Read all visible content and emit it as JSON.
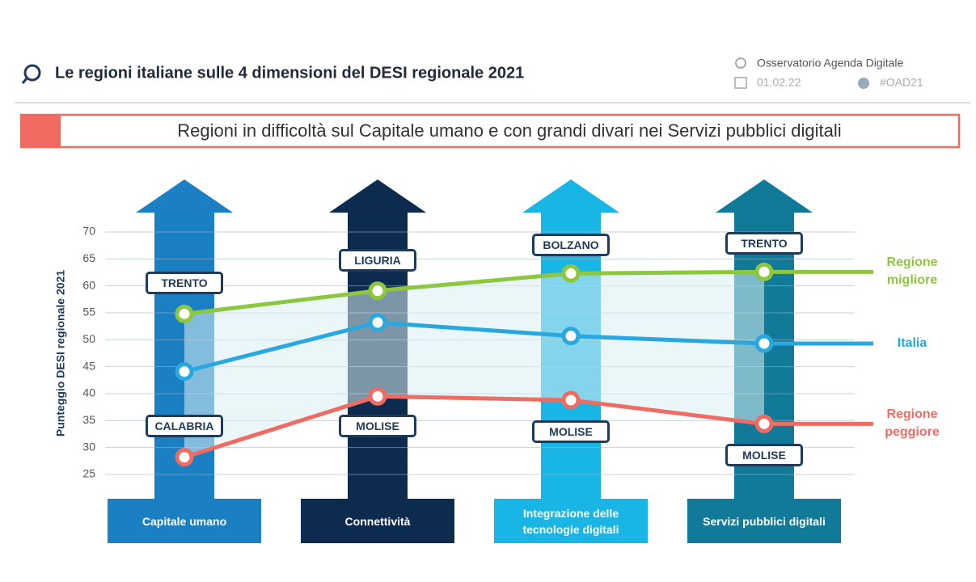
{
  "header": {
    "title": "Le regioni italiane sulle 4 dimensioni del DESI regionale 2021",
    "source": "Osservatorio Agenda Digitale",
    "date": "01.02.22",
    "hashtag": "#OAD21"
  },
  "banner": "Regioni in difficoltà sul Capitale umano e con grandi divari nei Servizi pubblici digitali",
  "chart_data": {
    "type": "line",
    "y_label": "Punteggio DESI regionale 2021",
    "categories": [
      "Capitale umano",
      "Connettività",
      "Integrazione delle tecnologie digitali",
      "Servizi pubblici digitali"
    ],
    "category_colors": [
      "#1b7fc4",
      "#0d2a4f",
      "#19b5e5",
      "#117a99"
    ],
    "ylim": [
      25,
      70
    ],
    "yticks": [
      25,
      30,
      35,
      40,
      45,
      50,
      55,
      60,
      65,
      70
    ],
    "grid": true,
    "series": [
      {
        "name": "Regione migliore",
        "color": "#8dc63f",
        "values": [
          54.8,
          59.1,
          62.3,
          62.6
        ],
        "region_labels": [
          "TRENTO",
          "LIGURIA",
          "BOLZANO",
          "TRENTO"
        ]
      },
      {
        "name": "Italia",
        "color": "#29a8e0",
        "values": [
          44.1,
          53.2,
          50.7,
          49.3
        ]
      },
      {
        "name": "Regione peggiore",
        "color": "#f06b61",
        "values": [
          28.2,
          39.5,
          38.8,
          34.4
        ],
        "region_labels": [
          "CALABRIA",
          "MOLISE",
          "MOLISE",
          "MOLISE"
        ]
      }
    ]
  }
}
